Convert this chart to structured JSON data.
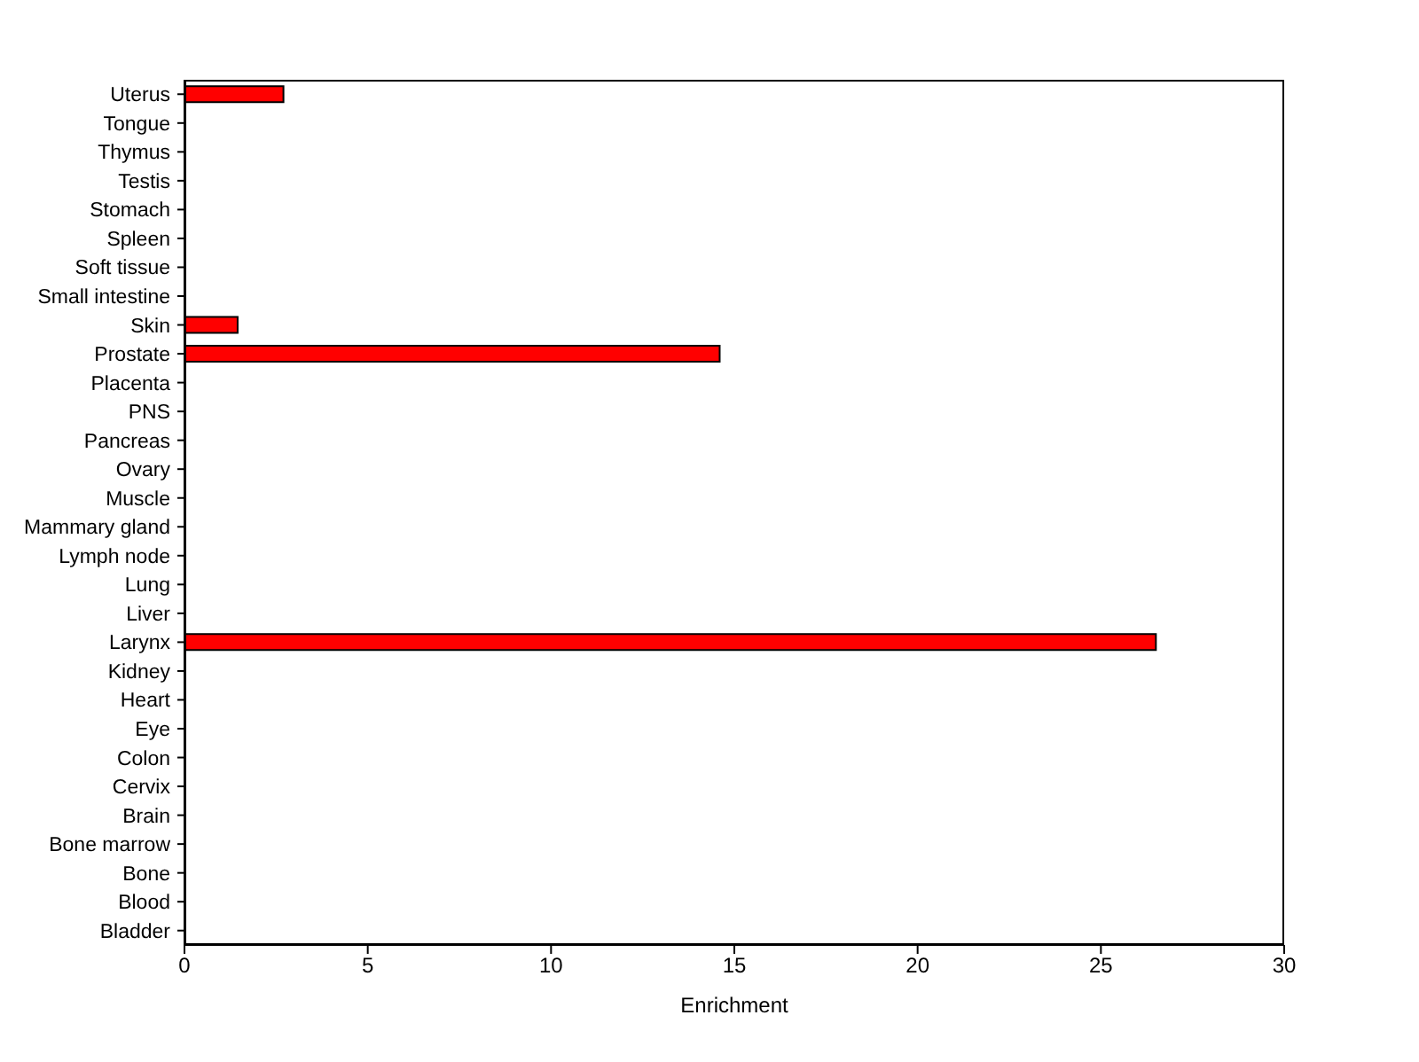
{
  "chart_data": {
    "type": "bar",
    "orientation": "horizontal",
    "xlabel": "Enrichment",
    "categories": [
      "Uterus",
      "Tongue",
      "Thymus",
      "Testis",
      "Stomach",
      "Spleen",
      "Soft tissue",
      "Small intestine",
      "Skin",
      "Prostate",
      "Placenta",
      "PNS",
      "Pancreas",
      "Ovary",
      "Muscle",
      "Mammary gland",
      "Lymph node",
      "Lung",
      "Liver",
      "Larynx",
      "Kidney",
      "Heart",
      "Eye",
      "Colon",
      "Cervix",
      "Brain",
      "Bone marrow",
      "Bone",
      "Blood",
      "Bladder"
    ],
    "values": [
      2.7,
      0,
      0,
      0,
      0,
      0,
      0,
      0,
      1.45,
      14.6,
      0,
      0,
      0,
      0,
      0,
      0,
      0,
      0,
      0,
      26.5,
      0,
      0,
      0,
      0,
      0,
      0,
      0,
      0,
      0,
      0
    ],
    "color": "#ff0000",
    "xlim": [
      0,
      30
    ],
    "xticks": [
      0,
      5,
      10,
      15,
      20,
      25,
      30
    ]
  }
}
